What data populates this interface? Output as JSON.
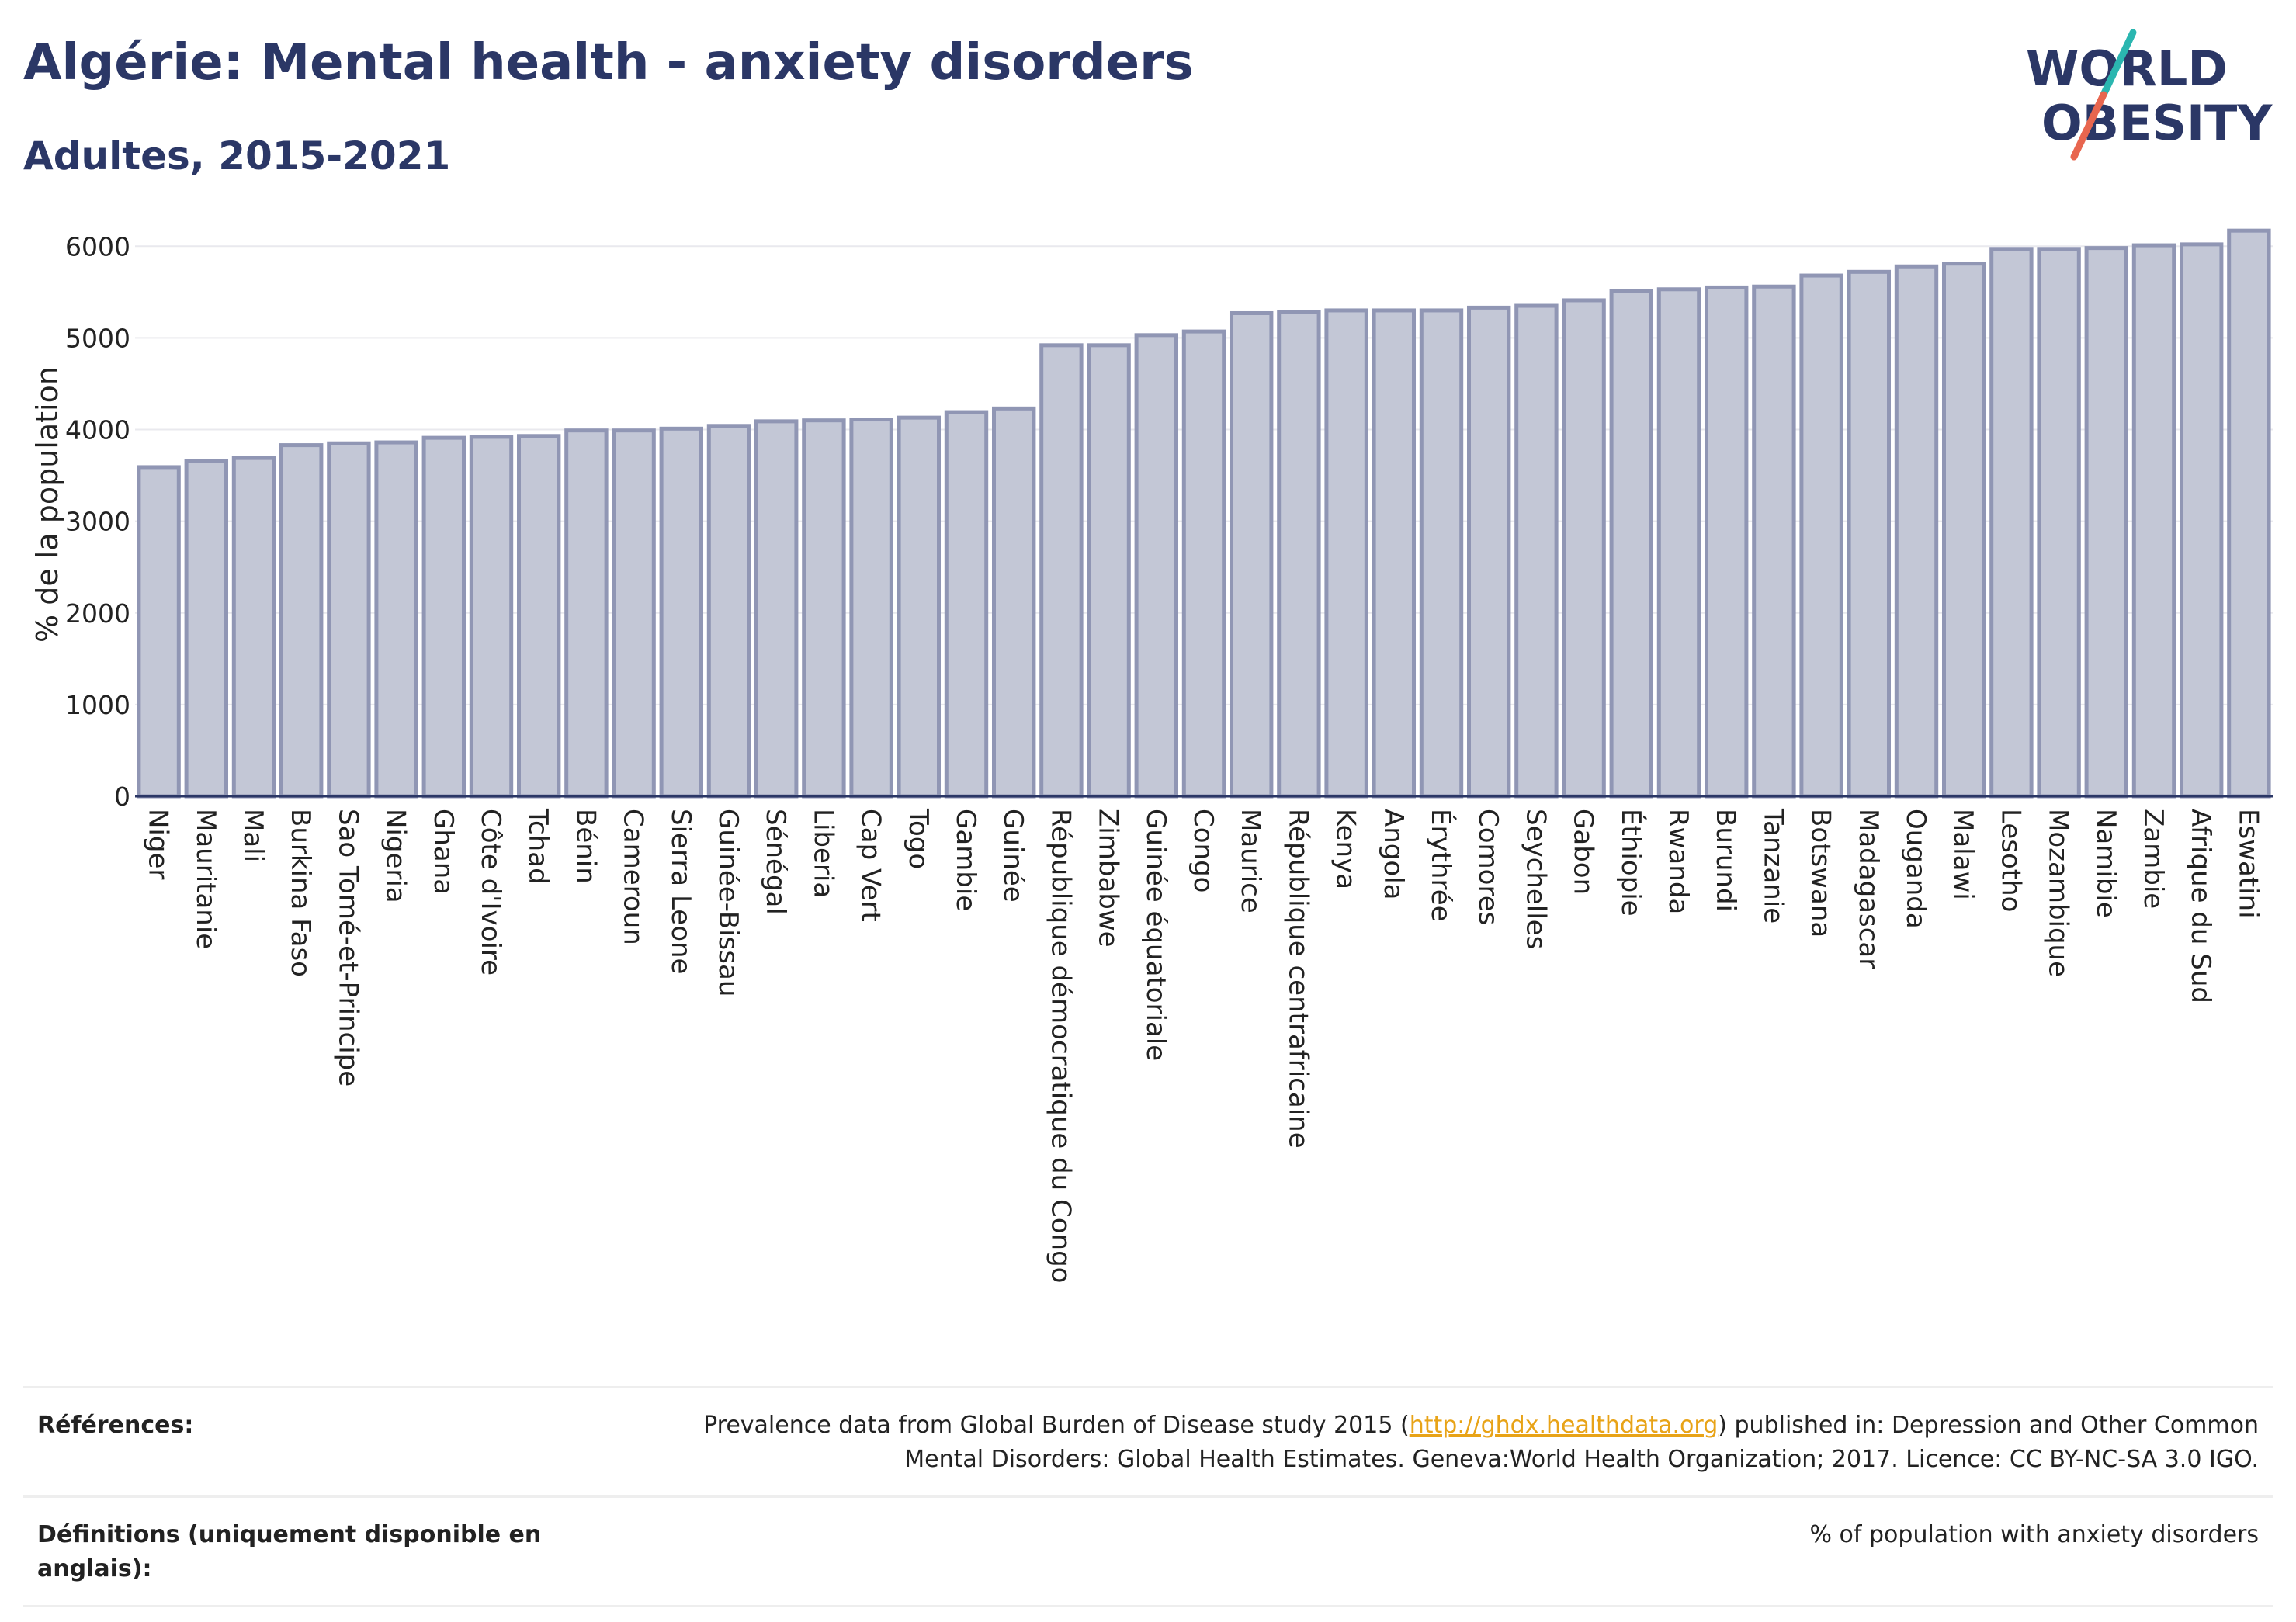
{
  "header": {
    "title": "Algérie: Mental health - anxiety disorders",
    "subtitle": "Adultes, 2015-2021"
  },
  "logo": {
    "line1": "WORLD",
    "line2": "OBESITY",
    "colors": {
      "text": "#2b3766",
      "slash_top": "#2bb6b0",
      "slash_bottom": "#e8664f"
    }
  },
  "chart_data": {
    "type": "bar",
    "ylabel": "% de la population",
    "ylim": [
      0,
      6400
    ],
    "yticks": [
      0,
      1000,
      2000,
      3000,
      4000,
      5000,
      6000
    ],
    "grid": true,
    "colors": {
      "bar_fill": "#c3c7d6",
      "bar_stroke": "#9096b4",
      "axis": "#2b3766",
      "grid": "#e9e9ee"
    },
    "categories": [
      "Niger",
      "Mauritanie",
      "Mali",
      "Burkina Faso",
      "Sao Tomé-et-Principe",
      "Nigeria",
      "Ghana",
      "Côte d'Ivoire",
      "Tchad",
      "Bénin",
      "Cameroun",
      "Sierra Leone",
      "Guinée-Bissau",
      "Sénégal",
      "Liberia",
      "Cap Vert",
      "Togo",
      "Gambie",
      "Guinée",
      "République démocratique du Congo",
      "Zimbabwe",
      "Guinée équatoriale",
      "Congo",
      "Maurice",
      "République centrafricaine",
      "Kenya",
      "Angola",
      "Érythrée",
      "Comores",
      "Seychelles",
      "Gabon",
      "Éthiopie",
      "Rwanda",
      "Burundi",
      "Tanzanie",
      "Botswana",
      "Madagascar",
      "Ouganda",
      "Malawi",
      "Lesotho",
      "Mozambique",
      "Namibie",
      "Zambie",
      "Afrique du Sud",
      "Eswatini"
    ],
    "values": [
      3590,
      3660,
      3690,
      3830,
      3850,
      3860,
      3910,
      3920,
      3930,
      3990,
      3990,
      4010,
      4040,
      4090,
      4100,
      4110,
      4130,
      4190,
      4230,
      4920,
      4920,
      5030,
      5070,
      5270,
      5280,
      5300,
      5300,
      5300,
      5330,
      5350,
      5410,
      5510,
      5530,
      5550,
      5560,
      5680,
      5720,
      5780,
      5810,
      5970,
      5970,
      5980,
      6010,
      6020,
      6170
    ]
  },
  "footer": {
    "references_label": "Références:",
    "references_before": "Prevalence data from Global Burden of Disease study 2015 (",
    "references_link": "http://ghdx.healthdata.org",
    "references_after": ") published in: Depression and Other Common Mental Disorders: Global Health Estimates. Geneva:World Health Organization; 2017. Licence: CC BY-NC-SA 3.0 IGO.",
    "definitions_label": "Définitions (uniquement disponible en anglais):",
    "definitions_value": "% of population with anxiety disorders"
  }
}
